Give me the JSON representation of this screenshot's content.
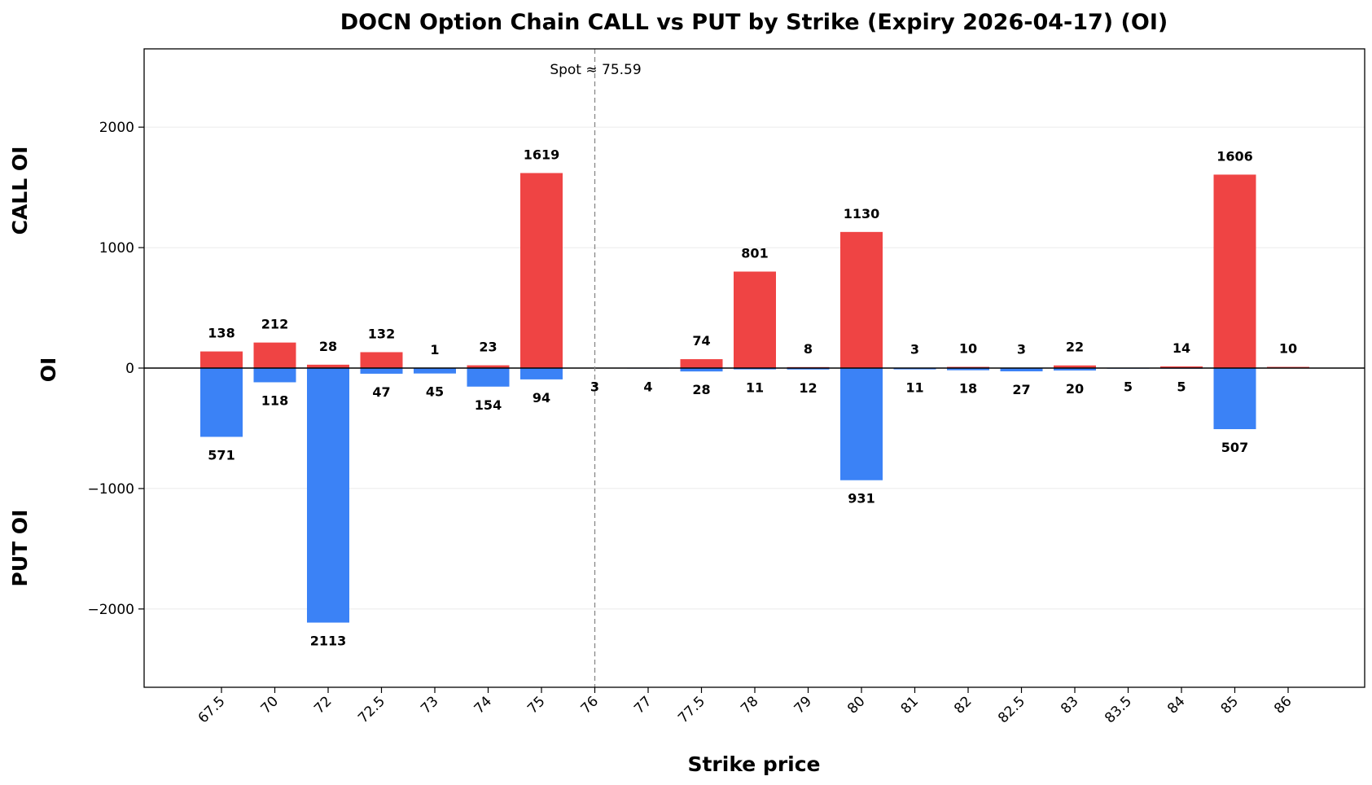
{
  "chart_data": {
    "type": "bar",
    "title": "DOCN Option Chain CALL vs PUT by Strike (Expiry 2026-04-17) (OI)",
    "xlabel": "Strike price",
    "ylabel": "OI",
    "ylabel_top": "CALL OI",
    "ylabel_bottom": "PUT OI",
    "ylim": [
      -2650,
      2650
    ],
    "yticks": [
      -2000,
      -1000,
      0,
      1000,
      2000
    ],
    "ytick_labels": [
      "−2000",
      "−1000",
      "0",
      "1000",
      "2000"
    ],
    "grid": "horizontal",
    "categories": [
      "67.5",
      "70",
      "72",
      "72.5",
      "73",
      "74",
      "75",
      "76",
      "77",
      "77.5",
      "78",
      "79",
      "80",
      "81",
      "82",
      "82.5",
      "83",
      "83.5",
      "84",
      "85",
      "86"
    ],
    "series": [
      {
        "name": "CALL",
        "color": "#ef4444",
        "values": [
          138,
          212,
          28,
          132,
          1,
          23,
          1619,
          null,
          null,
          74,
          801,
          8,
          1130,
          3,
          10,
          3,
          22,
          null,
          14,
          1606,
          10
        ]
      },
      {
        "name": "PUT",
        "color": "#3b82f6",
        "values": [
          571,
          118,
          2113,
          47,
          45,
          154,
          94,
          3,
          4,
          28,
          11,
          12,
          931,
          11,
          18,
          27,
          20,
          5,
          5,
          507,
          null
        ]
      }
    ],
    "spot": {
      "value": 75.59,
      "label": "Spot ≈ 75.59",
      "position_category": "76"
    }
  }
}
